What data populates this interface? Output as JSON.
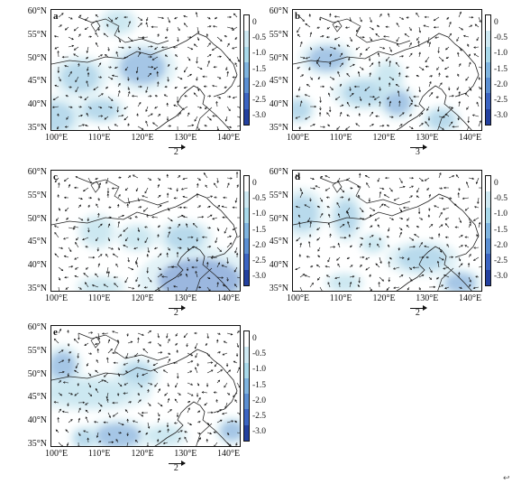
{
  "figure": {
    "lat_labels": [
      "60°N",
      "55°N",
      "50°N",
      "45°N",
      "40°N",
      "35°N"
    ],
    "lon_labels": [
      "100°E",
      "110°E",
      "120°E",
      "130°E",
      "140°E"
    ],
    "colorbar_labels": [
      "0",
      "-0.5",
      "-1.0",
      "-1.5",
      "-2.0",
      "-2.5",
      "-3.0"
    ],
    "colorbar_colors": [
      "#ffffff",
      "#cfe9f2",
      "#a9d9ea",
      "#7fb4df",
      "#5b8fd2",
      "#3b64c2",
      "#23409f"
    ],
    "corner_mark": "↩"
  },
  "panels": [
    {
      "letter": "a",
      "ref_label": "2",
      "patches": [
        [
          0.15,
          0.55,
          0.1,
          0.12,
          0.55
        ],
        [
          0.48,
          0.47,
          0.12,
          0.14,
          0.7
        ],
        [
          0.02,
          0.88,
          0.1,
          0.12,
          0.6
        ],
        [
          0.26,
          0.82,
          0.09,
          0.08,
          0.6
        ],
        [
          0.35,
          0.1,
          0.07,
          0.08,
          0.35
        ]
      ]
    },
    {
      "letter": "b",
      "ref_label": "3",
      "patches": [
        [
          0.18,
          0.4,
          0.1,
          0.1,
          0.7
        ],
        [
          0.38,
          0.68,
          0.12,
          0.1,
          0.55
        ],
        [
          0.55,
          0.76,
          0.07,
          0.1,
          0.65
        ],
        [
          0.78,
          0.9,
          0.07,
          0.08,
          0.6
        ],
        [
          0.03,
          0.82,
          0.06,
          0.08,
          0.55
        ],
        [
          0.5,
          0.55,
          0.06,
          0.1,
          0.4
        ]
      ]
    },
    {
      "letter": "c",
      "ref_label": "2",
      "patches": [
        [
          0.78,
          0.9,
          0.22,
          0.18,
          0.9
        ],
        [
          0.7,
          0.55,
          0.1,
          0.1,
          0.6
        ],
        [
          0.24,
          0.5,
          0.07,
          0.1,
          0.45
        ],
        [
          0.45,
          0.55,
          0.07,
          0.08,
          0.4
        ],
        [
          0.26,
          0.95,
          0.09,
          0.06,
          0.5
        ]
      ]
    },
    {
      "letter": "d",
      "ref_label": "2",
      "patches": [
        [
          0.05,
          0.35,
          0.08,
          0.14,
          0.6
        ],
        [
          0.28,
          0.38,
          0.06,
          0.14,
          0.6
        ],
        [
          0.68,
          0.72,
          0.13,
          0.1,
          0.6
        ],
        [
          0.88,
          0.92,
          0.08,
          0.08,
          0.8
        ],
        [
          0.27,
          0.92,
          0.07,
          0.06,
          0.45
        ],
        [
          0.42,
          0.6,
          0.05,
          0.06,
          0.4
        ]
      ]
    },
    {
      "letter": "e",
      "ref_label": "2",
      "patches": [
        [
          0.06,
          0.33,
          0.07,
          0.12,
          0.65
        ],
        [
          0.45,
          0.4,
          0.08,
          0.1,
          0.6
        ],
        [
          0.2,
          0.55,
          0.22,
          0.1,
          0.45
        ],
        [
          0.35,
          0.9,
          0.12,
          0.1,
          0.7
        ],
        [
          0.17,
          0.92,
          0.05,
          0.07,
          0.55
        ],
        [
          0.95,
          0.86,
          0.06,
          0.08,
          0.7
        ],
        [
          0.6,
          0.9,
          0.08,
          0.07,
          0.45
        ]
      ]
    }
  ]
}
